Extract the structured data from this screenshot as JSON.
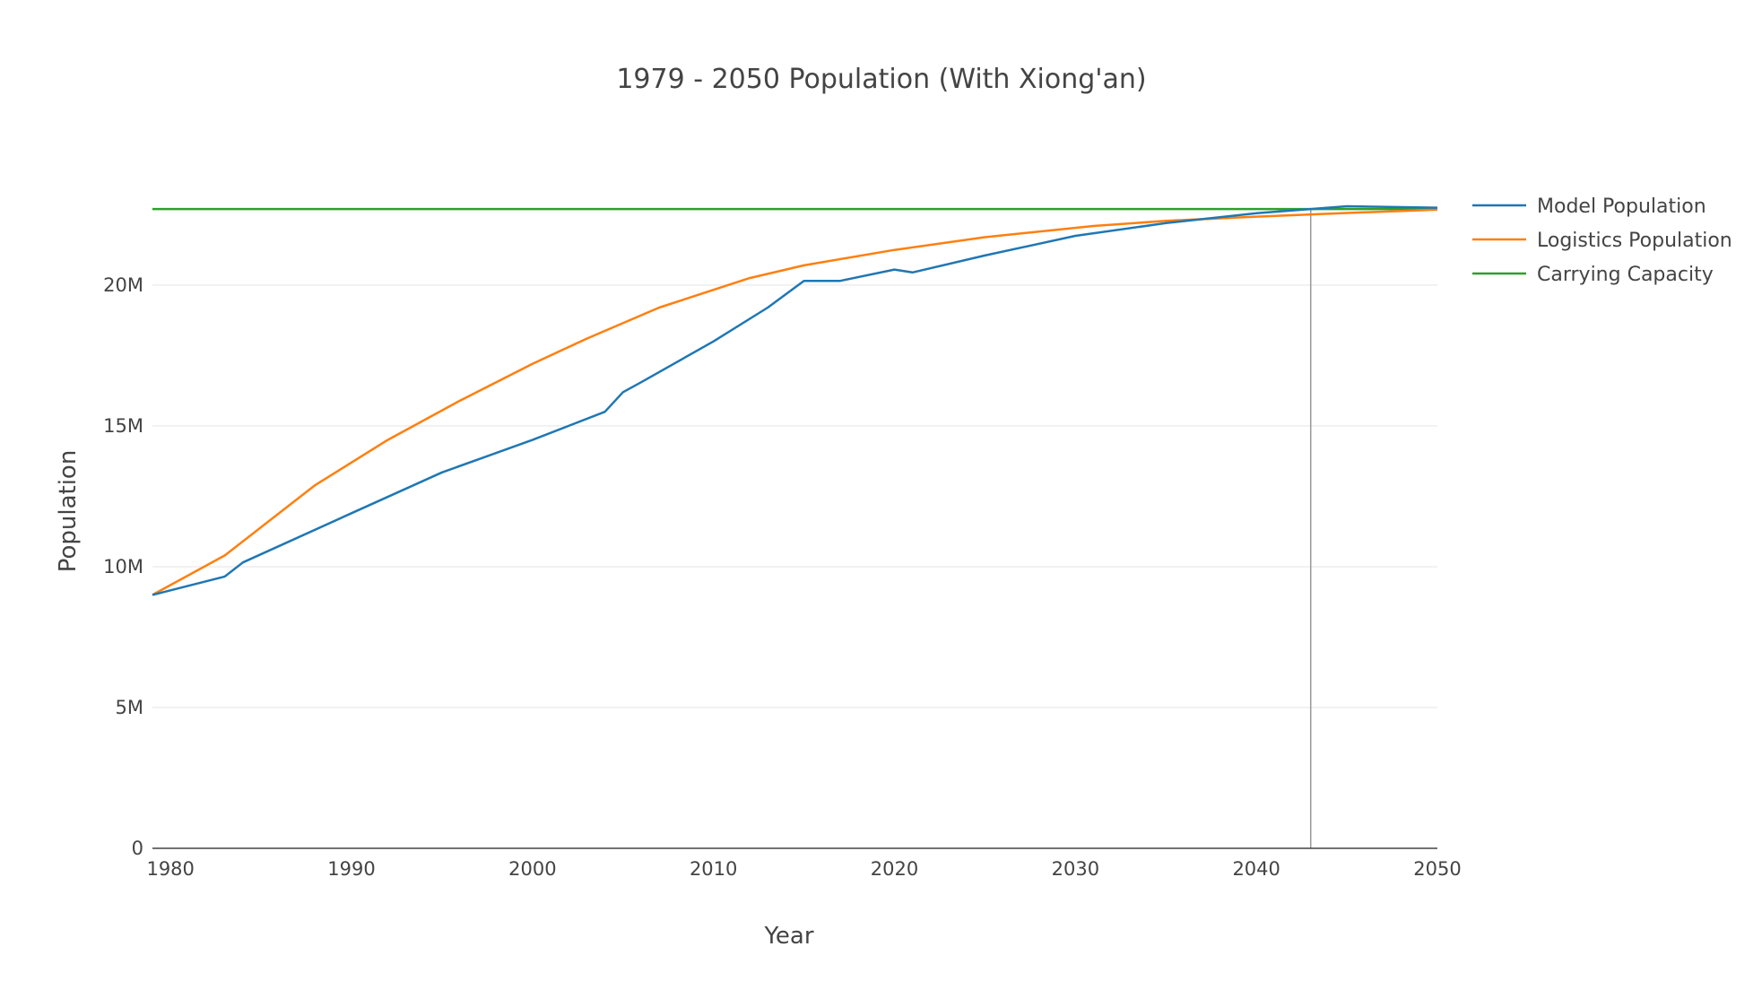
{
  "chart_data": {
    "type": "line",
    "title": "1979 - 2050 Population (With Xiong'an)",
    "xlabel": "Year",
    "ylabel": "Population",
    "xlim": [
      1979,
      2050
    ],
    "ylim": [
      0,
      23500000
    ],
    "x_ticks": [
      1980,
      1990,
      2000,
      2010,
      2020,
      2030,
      2040,
      2050
    ],
    "y_ticks": [
      0,
      5000000,
      10000000,
      15000000,
      20000000
    ],
    "y_tick_labels": [
      "0",
      "5M",
      "10M",
      "15M",
      "20M"
    ],
    "grid": "horizontal",
    "legend_position": "right",
    "hover_line_x": 2043,
    "series": [
      {
        "name": "Model Population",
        "color": "#1f77b4",
        "points": [
          [
            1979,
            9000000
          ],
          [
            1983,
            9650000
          ],
          [
            1984,
            10150000
          ],
          [
            1990,
            11900000
          ],
          [
            1995,
            13350000
          ],
          [
            2000,
            14500000
          ],
          [
            2004,
            15500000
          ],
          [
            2005,
            16200000
          ],
          [
            2006,
            16550000
          ],
          [
            2010,
            18000000
          ],
          [
            2013,
            19200000
          ],
          [
            2015,
            20150000
          ],
          [
            2017,
            20150000
          ],
          [
            2020,
            20550000
          ],
          [
            2021,
            20450000
          ],
          [
            2025,
            21050000
          ],
          [
            2030,
            21750000
          ],
          [
            2035,
            22200000
          ],
          [
            2040,
            22550000
          ],
          [
            2043,
            22700000
          ],
          [
            2045,
            22800000
          ],
          [
            2050,
            22750000
          ]
        ]
      },
      {
        "name": "Logistics Population",
        "color": "#ff7f0e",
        "points": [
          [
            1979,
            9000000
          ],
          [
            1983,
            10400000
          ],
          [
            1988,
            12900000
          ],
          [
            1992,
            14500000
          ],
          [
            1996,
            15900000
          ],
          [
            2000,
            17200000
          ],
          [
            2003,
            18100000
          ],
          [
            2007,
            19200000
          ],
          [
            2012,
            20250000
          ],
          [
            2015,
            20700000
          ],
          [
            2020,
            21250000
          ],
          [
            2025,
            21700000
          ],
          [
            2031,
            22100000
          ],
          [
            2035,
            22280000
          ],
          [
            2040,
            22430000
          ],
          [
            2045,
            22560000
          ],
          [
            2050,
            22680000
          ]
        ]
      },
      {
        "name": "Carrying Capacity",
        "color": "#2ca02c",
        "points": [
          [
            1979,
            22700000
          ],
          [
            2050,
            22700000
          ]
        ]
      }
    ]
  }
}
